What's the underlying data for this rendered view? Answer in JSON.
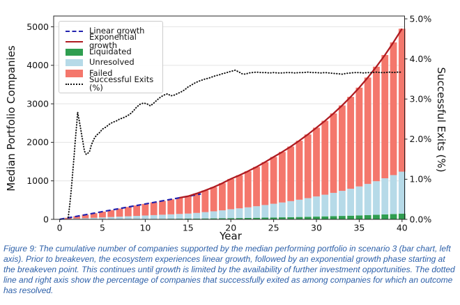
{
  "caption": {
    "text": "Figure 9: The cumulative number of companies supported by the median performing portfolio in scenario 3 (bar chart, left axis). Prior to breakeven, the ecosystem experiences linear growth, followed by an exponential growth phase starting at the breakeven point. This continues until growth is limited by the availability of further investment opportunities. The dotted line and right axis show the percentage of companies that successfully exited as among companies for which an outcome has resolved."
  },
  "chart_data": {
    "type": "combo-stacked-bar-line",
    "title": "",
    "xlabel": "Year",
    "ylabel_left": "Median Portfolio Companies",
    "ylabel_right": "Successful Exits (%)",
    "x_ticks": [
      0,
      5,
      10,
      15,
      20,
      25,
      30,
      35,
      40
    ],
    "left_axis": {
      "ticks": [
        0,
        1000,
        2000,
        3000,
        4000,
        5000
      ],
      "range": [
        0,
        5280
      ]
    },
    "right_axis": {
      "tick_values": [
        0,
        1,
        2,
        3,
        4,
        5
      ],
      "tick_labels": [
        "0.0%",
        "1.0%",
        "2.0%",
        "3.0%",
        "4.0%",
        "5.0%"
      ],
      "range": [
        0,
        5.07
      ]
    },
    "grid": "horizontal",
    "legend": {
      "position": "upper left",
      "order": [
        3,
        4,
        0,
        1,
        2,
        5
      ]
    },
    "years": [
      0,
      1,
      2,
      3,
      4,
      5,
      6,
      7,
      8,
      9,
      10,
      11,
      12,
      13,
      14,
      15,
      16,
      17,
      18,
      19,
      20,
      21,
      22,
      23,
      24,
      25,
      26,
      27,
      28,
      29,
      30,
      31,
      32,
      33,
      34,
      35,
      36,
      37,
      38,
      39,
      40
    ],
    "series": [
      {
        "name": "Liquidated",
        "type": "bar",
        "axis": "left",
        "color": "#2F9E50",
        "values": [
          0,
          1,
          2,
          4,
          5,
          6,
          7,
          8,
          10,
          11,
          12,
          13,
          14,
          16,
          17,
          18,
          20,
          23,
          25,
          28,
          32,
          34,
          37,
          41,
          45,
          49,
          53,
          57,
          61,
          66,
          71,
          77,
          83,
          89,
          95,
          103,
          110,
          119,
          128,
          138,
          149
        ]
      },
      {
        "name": "Unresolved",
        "type": "bar",
        "axis": "left",
        "color": "#B6DAE8",
        "values": [
          0,
          9,
          18,
          26,
          35,
          44,
          53,
          62,
          70,
          79,
          88,
          97,
          106,
          114,
          123,
          132,
          147,
          165,
          184,
          206,
          231,
          252,
          275,
          300,
          327,
          356,
          385,
          416,
          449,
          485,
          524,
          563,
          605,
          651,
          700,
          752,
          810,
          872,
          939,
          1011,
          1089
        ]
      },
      {
        "name": "Failed",
        "type": "bar",
        "axis": "left",
        "color": "#F4776C",
        "values": [
          0,
          30,
          60,
          90,
          120,
          150,
          180,
          210,
          240,
          270,
          300,
          330,
          360,
          390,
          420,
          450,
          503,
          562,
          629,
          703,
          787,
          859,
          937,
          1021,
          1114,
          1215,
          1312,
          1417,
          1531,
          1653,
          1785,
          1919,
          2063,
          2218,
          2386,
          2565,
          2762,
          2973,
          3201,
          3447,
          3712
        ]
      },
      {
        "name": "Linear growth",
        "type": "line",
        "style": "dashed",
        "axis": "left",
        "color": "#2222AE",
        "x": [
          0,
          16.5
        ],
        "y": [
          0,
          660
        ]
      },
      {
        "name": "Exponential growth",
        "type": "line",
        "style": "solid",
        "axis": "left",
        "color": "#AF1B21",
        "x": [
          14,
          15,
          16,
          17,
          18,
          19,
          20,
          21,
          22,
          23,
          24,
          25,
          26,
          27,
          28,
          29,
          30,
          31,
          32,
          33,
          34,
          35,
          36,
          37,
          38,
          39,
          40
        ],
        "y": [
          560,
          600,
          670,
          750,
          838,
          937,
          1050,
          1145,
          1249,
          1362,
          1486,
          1620,
          1750,
          1890,
          2041,
          2204,
          2380,
          2559,
          2751,
          2958,
          3181,
          3420,
          3682,
          3964,
          4268,
          4596,
          4950
        ]
      },
      {
        "name": "Successful Exits (%)",
        "type": "line",
        "style": "dotted",
        "axis": "right",
        "color": "#111111",
        "x": [
          1.0,
          1.1,
          1.2,
          1.3,
          1.4,
          1.5,
          1.6,
          1.7,
          1.8,
          1.9,
          2.0,
          2.1,
          2.2,
          2.3,
          2.4,
          2.5,
          2.6,
          2.7,
          2.8,
          2.9,
          3.0,
          3.1,
          3.2,
          3.3,
          3.4,
          3.5,
          3.7,
          4.0,
          4.3,
          4.6,
          5.0,
          5.4,
          5.8,
          6.2,
          6.6,
          7.0,
          7.4,
          7.8,
          8.2,
          8.6,
          9.0,
          9.4,
          9.8,
          10.2,
          10.6,
          11.0,
          11.4,
          11.8,
          12.2,
          12.6,
          13.0,
          13.4,
          13.8,
          14.2,
          14.6,
          15.0,
          15.4,
          15.8,
          16.2,
          16.6,
          17.0,
          17.4,
          17.8,
          18.2,
          18.6,
          19.0,
          19.4,
          19.8,
          20.2,
          20.5,
          20.9,
          21.3,
          21.7,
          22.1,
          22.5,
          23.0,
          23.5,
          24.0,
          24.5,
          25.0,
          25.5,
          26.0,
          26.5,
          27.0,
          27.5,
          28.0,
          28.5,
          29.0,
          29.5,
          30.0,
          30.5,
          31.0,
          31.5,
          32.0,
          32.5,
          33.0,
          33.5,
          34.0,
          34.5,
          35.0,
          35.5,
          36.0,
          36.5,
          37.0,
          37.5,
          38.0,
          38.5,
          39.0,
          39.5,
          40.0
        ],
        "y": [
          0.05,
          0.22,
          0.4,
          0.62,
          0.85,
          1.1,
          1.35,
          1.62,
          1.9,
          2.15,
          2.4,
          2.67,
          2.56,
          2.45,
          2.32,
          2.2,
          2.07,
          1.95,
          1.82,
          1.7,
          1.66,
          1.62,
          1.63,
          1.65,
          1.67,
          1.7,
          1.85,
          2.0,
          2.1,
          2.15,
          2.25,
          2.3,
          2.37,
          2.42,
          2.45,
          2.5,
          2.53,
          2.57,
          2.62,
          2.7,
          2.8,
          2.87,
          2.9,
          2.88,
          2.83,
          2.9,
          2.98,
          3.05,
          3.1,
          3.13,
          3.08,
          3.1,
          3.14,
          3.18,
          3.23,
          3.3,
          3.35,
          3.4,
          3.44,
          3.47,
          3.5,
          3.52,
          3.55,
          3.58,
          3.6,
          3.63,
          3.65,
          3.68,
          3.7,
          3.72,
          3.68,
          3.63,
          3.62,
          3.65,
          3.66,
          3.67,
          3.66,
          3.66,
          3.65,
          3.66,
          3.65,
          3.65,
          3.66,
          3.66,
          3.65,
          3.66,
          3.66,
          3.67,
          3.66,
          3.66,
          3.65,
          3.66,
          3.65,
          3.64,
          3.63,
          3.62,
          3.64,
          3.65,
          3.66,
          3.66,
          3.65,
          3.66,
          3.66,
          3.67,
          3.66,
          3.66,
          3.67,
          3.66,
          3.67,
          3.67
        ]
      }
    ]
  }
}
